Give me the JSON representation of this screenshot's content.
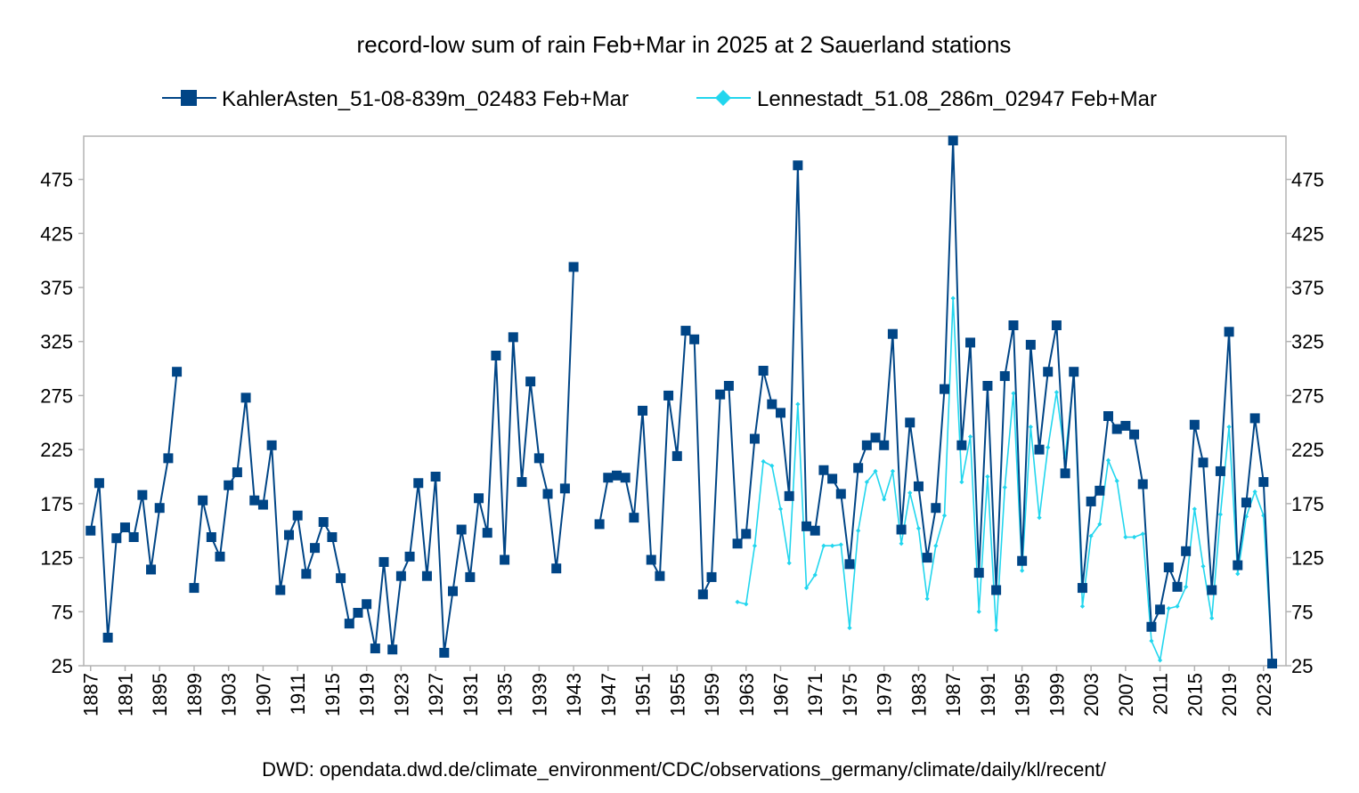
{
  "chart_data": {
    "type": "line",
    "title": "record-low sum of rain Feb+Mar in 2025 at 2 Sauerland stations",
    "source": "DWD:  opendata.dwd.de/climate_environment/CDC/observations_germany/climate/daily/kl/recent/",
    "xlabel": "",
    "ylabel": "",
    "xlim": [
      1887,
      2025
    ],
    "ylim": [
      25,
      515
    ],
    "yticks": [
      25,
      75,
      125,
      175,
      225,
      275,
      325,
      375,
      425,
      475
    ],
    "xticks": [
      1887,
      1891,
      1895,
      1899,
      1903,
      1907,
      1911,
      1915,
      1919,
      1923,
      1927,
      1931,
      1935,
      1939,
      1943,
      1947,
      1951,
      1955,
      1959,
      1963,
      1967,
      1971,
      1975,
      1979,
      1983,
      1987,
      1991,
      1995,
      1999,
      2003,
      2007,
      2011,
      2015,
      2019,
      2023
    ],
    "grid": false,
    "legend_position": "top",
    "series": [
      {
        "name": "KahlerAsten_51-08-839m_02483 Feb+Mar",
        "color": "#004586",
        "marker": "square",
        "values": [
          [
            1887,
            150
          ],
          [
            1888,
            194
          ],
          [
            1889,
            51
          ],
          [
            1890,
            143
          ],
          [
            1891,
            153
          ],
          [
            1892,
            144
          ],
          [
            1893,
            183
          ],
          [
            1894,
            114
          ],
          [
            1895,
            171
          ],
          [
            1896,
            217
          ],
          [
            1897,
            297
          ],
          [
            1899,
            97
          ],
          [
            1900,
            178
          ],
          [
            1901,
            144
          ],
          [
            1902,
            126
          ],
          [
            1903,
            192
          ],
          [
            1904,
            204
          ],
          [
            1905,
            273
          ],
          [
            1906,
            178
          ],
          [
            1907,
            174
          ],
          [
            1908,
            229
          ],
          [
            1909,
            95
          ],
          [
            1910,
            146
          ],
          [
            1911,
            164
          ],
          [
            1912,
            110
          ],
          [
            1913,
            134
          ],
          [
            1914,
            158
          ],
          [
            1915,
            144
          ],
          [
            1916,
            106
          ],
          [
            1917,
            64
          ],
          [
            1918,
            74
          ],
          [
            1919,
            82
          ],
          [
            1920,
            41
          ],
          [
            1921,
            121
          ],
          [
            1922,
            40
          ],
          [
            1923,
            108
          ],
          [
            1924,
            126
          ],
          [
            1925,
            194
          ],
          [
            1926,
            108
          ],
          [
            1927,
            200
          ],
          [
            1928,
            37
          ],
          [
            1929,
            94
          ],
          [
            1930,
            151
          ],
          [
            1931,
            107
          ],
          [
            1932,
            180
          ],
          [
            1933,
            148
          ],
          [
            1934,
            312
          ],
          [
            1935,
            123
          ],
          [
            1936,
            329
          ],
          [
            1937,
            195
          ],
          [
            1938,
            288
          ],
          [
            1939,
            217
          ],
          [
            1940,
            184
          ],
          [
            1941,
            115
          ],
          [
            1942,
            189
          ],
          [
            1943,
            394
          ],
          [
            1946,
            156
          ],
          [
            1947,
            199
          ],
          [
            1948,
            201
          ],
          [
            1949,
            199
          ],
          [
            1950,
            162
          ],
          [
            1951,
            261
          ],
          [
            1952,
            123
          ],
          [
            1953,
            108
          ],
          [
            1954,
            275
          ],
          [
            1955,
            219
          ],
          [
            1956,
            335
          ],
          [
            1957,
            327
          ],
          [
            1958,
            91
          ],
          [
            1959,
            107
          ],
          [
            1960,
            276
          ],
          [
            1961,
            284
          ],
          [
            1962,
            138
          ],
          [
            1963,
            147
          ],
          [
            1964,
            235
          ],
          [
            1965,
            298
          ],
          [
            1966,
            267
          ],
          [
            1967,
            259
          ],
          [
            1968,
            182
          ],
          [
            1969,
            488
          ],
          [
            1970,
            154
          ],
          [
            1971,
            150
          ],
          [
            1972,
            206
          ],
          [
            1973,
            198
          ],
          [
            1974,
            184
          ],
          [
            1975,
            119
          ],
          [
            1976,
            208
          ],
          [
            1977,
            229
          ],
          [
            1978,
            236
          ],
          [
            1979,
            229
          ],
          [
            1980,
            332
          ],
          [
            1981,
            151
          ],
          [
            1982,
            250
          ],
          [
            1983,
            191
          ],
          [
            1984,
            125
          ],
          [
            1985,
            171
          ],
          [
            1986,
            281
          ],
          [
            1987,
            511
          ],
          [
            1988,
            229
          ],
          [
            1989,
            324
          ],
          [
            1990,
            111
          ],
          [
            1991,
            284
          ],
          [
            1992,
            95
          ],
          [
            1993,
            293
          ],
          [
            1994,
            340
          ],
          [
            1995,
            122
          ],
          [
            1996,
            322
          ],
          [
            1997,
            225
          ],
          [
            1998,
            297
          ],
          [
            1999,
            340
          ],
          [
            2000,
            203
          ],
          [
            2001,
            297
          ],
          [
            2002,
            97
          ],
          [
            2003,
            177
          ],
          [
            2004,
            187
          ],
          [
            2005,
            256
          ],
          [
            2006,
            244
          ],
          [
            2007,
            247
          ],
          [
            2008,
            239
          ],
          [
            2009,
            193
          ],
          [
            2010,
            61
          ],
          [
            2011,
            77
          ],
          [
            2012,
            116
          ],
          [
            2013,
            98
          ],
          [
            2014,
            131
          ],
          [
            2015,
            248
          ],
          [
            2016,
            213
          ],
          [
            2017,
            95
          ],
          [
            2018,
            205
          ],
          [
            2019,
            334
          ],
          [
            2020,
            118
          ],
          [
            2021,
            176
          ],
          [
            2022,
            254
          ],
          [
            2023,
            195
          ],
          [
            2024,
            27
          ]
        ]
      },
      {
        "name": "Lennestadt_51.08_286m_02947 Feb+Mar",
        "color": "#22d6ee",
        "marker": "diamond",
        "values": [
          [
            1962,
            84
          ],
          [
            1963,
            82
          ],
          [
            1964,
            136
          ],
          [
            1965,
            214
          ],
          [
            1966,
            210
          ],
          [
            1967,
            170
          ],
          [
            1968,
            120
          ],
          [
            1969,
            267
          ],
          [
            1970,
            97
          ],
          [
            1971,
            109
          ],
          [
            1972,
            136
          ],
          [
            1973,
            136
          ],
          [
            1974,
            137
          ],
          [
            1975,
            60
          ],
          [
            1976,
            150
          ],
          [
            1977,
            195
          ],
          [
            1978,
            205
          ],
          [
            1979,
            179
          ],
          [
            1980,
            205
          ],
          [
            1981,
            138
          ],
          [
            1982,
            185
          ],
          [
            1983,
            152
          ],
          [
            1984,
            87
          ],
          [
            1985,
            136
          ],
          [
            1986,
            164
          ],
          [
            1987,
            365
          ],
          [
            1988,
            195
          ],
          [
            1989,
            237
          ],
          [
            1990,
            75
          ],
          [
            1991,
            200
          ],
          [
            1992,
            58
          ],
          [
            1993,
            190
          ],
          [
            1994,
            277
          ],
          [
            1995,
            113
          ],
          [
            1996,
            246
          ],
          [
            1997,
            162
          ],
          [
            1998,
            227
          ],
          [
            1999,
            278
          ],
          [
            2000,
            217
          ],
          [
            2001,
            293
          ],
          [
            2002,
            80
          ],
          [
            2003,
            145
          ],
          [
            2004,
            156
          ],
          [
            2005,
            215
          ],
          [
            2006,
            196
          ],
          [
            2007,
            144
          ],
          [
            2008,
            144
          ],
          [
            2009,
            147
          ],
          [
            2010,
            48
          ],
          [
            2011,
            30
          ],
          [
            2012,
            78
          ],
          [
            2013,
            80
          ],
          [
            2014,
            98
          ],
          [
            2015,
            170
          ],
          [
            2016,
            117
          ],
          [
            2017,
            69
          ],
          [
            2018,
            165
          ],
          [
            2019,
            246
          ],
          [
            2020,
            110
          ],
          [
            2021,
            163
          ],
          [
            2022,
            186
          ],
          [
            2023,
            164
          ],
          [
            2024,
            28
          ]
        ]
      }
    ]
  }
}
